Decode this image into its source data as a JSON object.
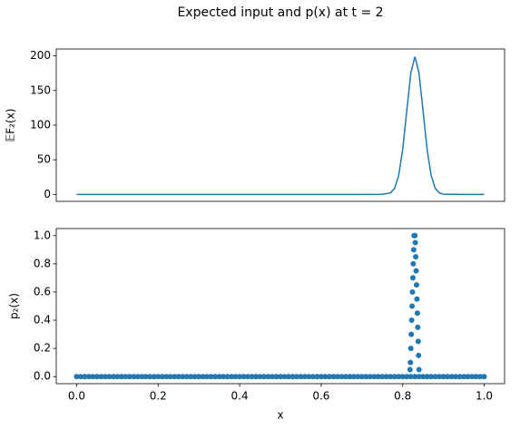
{
  "chart_data": [
    {
      "type": "line",
      "title": "Expected input and p(x) at t = 2",
      "ylabel": "𝔼F₂(x)",
      "color": "#1f77b4",
      "x": [
        0,
        0.1,
        0.2,
        0.3,
        0.4,
        0.5,
        0.6,
        0.7,
        0.75,
        0.77,
        0.78,
        0.79,
        0.8,
        0.81,
        0.82,
        0.83,
        0.84,
        0.85,
        0.86,
        0.87,
        0.88,
        0.89,
        0.9,
        0.95,
        1
      ],
      "values": [
        0,
        0,
        0,
        0,
        0,
        0,
        0,
        0,
        0.1,
        2.2,
        8.7,
        26.9,
        64.6,
        120.7,
        175.6,
        199,
        175.6,
        120.7,
        64.6,
        26.9,
        8.7,
        2.2,
        0.3,
        0,
        0
      ],
      "xlim": [
        -0.05,
        1.05
      ],
      "ylim": [
        -10,
        210
      ],
      "yticks": [
        0,
        50,
        100,
        150,
        200
      ]
    },
    {
      "type": "scatter",
      "xlabel": "x",
      "ylabel": "p₂(x)",
      "color": "#1f77b4",
      "x": [
        0,
        0.01,
        0.02,
        0.03,
        0.04,
        0.05,
        0.06,
        0.07,
        0.08,
        0.09,
        0.1,
        0.11,
        0.12,
        0.13,
        0.14,
        0.15,
        0.16,
        0.17,
        0.18,
        0.19,
        0.2,
        0.21,
        0.22,
        0.23,
        0.24,
        0.25,
        0.26,
        0.27,
        0.28,
        0.29,
        0.3,
        0.31,
        0.32,
        0.33,
        0.34,
        0.35,
        0.36,
        0.37,
        0.38,
        0.39,
        0.4,
        0.41,
        0.42,
        0.43,
        0.44,
        0.45,
        0.46,
        0.47,
        0.48,
        0.49,
        0.5,
        0.51,
        0.52,
        0.53,
        0.54,
        0.55,
        0.56,
        0.57,
        0.58,
        0.59,
        0.6,
        0.61,
        0.62,
        0.63,
        0.64,
        0.65,
        0.66,
        0.67,
        0.68,
        0.69,
        0.7,
        0.71,
        0.72,
        0.73,
        0.74,
        0.75,
        0.76,
        0.77,
        0.78,
        0.79,
        0.8,
        0.81,
        0.82,
        0.83,
        0.84,
        0.85,
        0.86,
        0.87,
        0.88,
        0.89,
        0.9,
        0.91,
        0.92,
        0.93,
        0.94,
        0.95,
        0.96,
        0.97,
        0.98,
        0.99,
        1,
        0.818,
        0.819,
        0.82,
        0.821,
        0.822,
        0.823,
        0.824,
        0.825,
        0.826,
        0.827,
        0.828,
        0.829,
        0.83,
        0.831,
        0.832,
        0.833,
        0.834,
        0.835,
        0.836,
        0.837,
        0.838,
        0.839,
        0.84
      ],
      "values": [
        0,
        0,
        0,
        0,
        0,
        0,
        0,
        0,
        0,
        0,
        0,
        0,
        0,
        0,
        0,
        0,
        0,
        0,
        0,
        0,
        0,
        0,
        0,
        0,
        0,
        0,
        0,
        0,
        0,
        0,
        0,
        0,
        0,
        0,
        0,
        0,
        0,
        0,
        0,
        0,
        0,
        0,
        0,
        0,
        0,
        0,
        0,
        0,
        0,
        0,
        0,
        0,
        0,
        0,
        0,
        0,
        0,
        0,
        0,
        0,
        0,
        0,
        0,
        0,
        0,
        0,
        0,
        0,
        0,
        0,
        0,
        0,
        0,
        0,
        0,
        0,
        0,
        0,
        0,
        0,
        0,
        0,
        0,
        0,
        0,
        0,
        0,
        0,
        0,
        0,
        0,
        0,
        0,
        0,
        0,
        0,
        0,
        0,
        0,
        0,
        0,
        0.05,
        0.1,
        0.2,
        0.3,
        0.4,
        0.5,
        0.6,
        0.7,
        0.8,
        0.9,
        1,
        1,
        1,
        0.95,
        0.85,
        0.75,
        0.65,
        0.55,
        0.45,
        0.35,
        0.25,
        0.15,
        0.05
      ],
      "xlim": [
        -0.05,
        1.05
      ],
      "ylim": [
        -0.05,
        1.05
      ],
      "xticks": [
        {
          "value": 0,
          "label": "0.0"
        },
        {
          "value": 0.2,
          "label": "0.2"
        },
        {
          "value": 0.4,
          "label": "0.4"
        },
        {
          "value": 0.6,
          "label": "0.6"
        },
        {
          "value": 0.8,
          "label": "0.8"
        },
        {
          "value": 1,
          "label": "1.0"
        }
      ],
      "yticks": [
        {
          "value": 0,
          "label": "0.0"
        },
        {
          "value": 0.2,
          "label": "0.2"
        },
        {
          "value": 0.4,
          "label": "0.4"
        },
        {
          "value": 0.6,
          "label": "0.6"
        },
        {
          "value": 0.8,
          "label": "0.8"
        },
        {
          "value": 1,
          "label": "1.0"
        }
      ]
    }
  ]
}
